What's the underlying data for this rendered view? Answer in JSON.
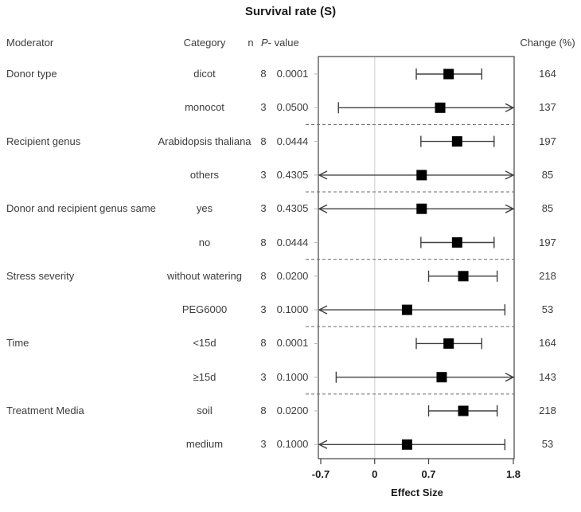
{
  "title": "Survival rate (S)",
  "header": {
    "moderator": "Moderator",
    "category": "Category",
    "n": "n",
    "p_italic": "P",
    "p_rest": "- value",
    "change": "Change (%)"
  },
  "chart_data": {
    "type": "forest",
    "title": "Survival rate (S)",
    "xlabel": "Effect Size",
    "xticks": [
      -0.7,
      0,
      0.7,
      1.8
    ],
    "xtick_labels": [
      "-0.7",
      "0",
      "0.7",
      "1.8"
    ],
    "xlim": [
      -0.73,
      1.81
    ],
    "zero_line": 0,
    "legend": "none",
    "colors": {
      "marker": "#000000",
      "bar": "#404040",
      "box": "#444444",
      "zero_line": "#dcdcdc",
      "separator": "#6e6e6e",
      "row_tick": "#b4b4b4",
      "text": "#3c3c3c"
    },
    "groups": [
      {
        "moderator": "Donor type",
        "rows": [
          {
            "category": "dicot",
            "n": 8,
            "p": "0.0001",
            "est": 0.96,
            "lo": 0.54,
            "hi": 1.39,
            "lo_arrow": false,
            "hi_arrow": false,
            "change": 164
          },
          {
            "category": "monocot",
            "n": 3,
            "p": "0.0500",
            "est": 0.85,
            "lo": -0.47,
            "hi": 1.81,
            "lo_arrow": false,
            "hi_arrow": true,
            "change": 137
          }
        ]
      },
      {
        "moderator": "Recipient genus",
        "rows": [
          {
            "category": "Arabidopsis thaliana",
            "n": 8,
            "p": "0.0444",
            "est": 1.07,
            "lo": 0.6,
            "hi": 1.55,
            "lo_arrow": false,
            "hi_arrow": false,
            "change": 197
          },
          {
            "category": "others",
            "n": 3,
            "p": "0.4305",
            "est": 0.61,
            "lo": -0.73,
            "hi": 1.81,
            "lo_arrow": true,
            "hi_arrow": true,
            "change": 85
          }
        ]
      },
      {
        "moderator": "Donor and recipient genus same",
        "rows": [
          {
            "category": "yes",
            "n": 3,
            "p": "0.4305",
            "est": 0.61,
            "lo": -0.73,
            "hi": 1.81,
            "lo_arrow": true,
            "hi_arrow": true,
            "change": 85
          },
          {
            "category": "no",
            "n": 8,
            "p": "0.0444",
            "est": 1.07,
            "lo": 0.6,
            "hi": 1.55,
            "lo_arrow": false,
            "hi_arrow": false,
            "change": 197
          }
        ]
      },
      {
        "moderator": "Stress severity",
        "rows": [
          {
            "category": "without watering",
            "n": 8,
            "p": "0.0200",
            "est": 1.15,
            "lo": 0.7,
            "hi": 1.59,
            "lo_arrow": false,
            "hi_arrow": false,
            "change": 218
          },
          {
            "category": "PEG6000",
            "n": 3,
            "p": "0.1000",
            "est": 0.42,
            "lo": -0.73,
            "hi": 1.69,
            "lo_arrow": true,
            "hi_arrow": false,
            "change": 53
          }
        ]
      },
      {
        "moderator": "Time",
        "rows": [
          {
            "category": "<15d",
            "n": 8,
            "p": "0.0001",
            "est": 0.96,
            "lo": 0.54,
            "hi": 1.39,
            "lo_arrow": false,
            "hi_arrow": false,
            "change": 164
          },
          {
            "category": "≥15d",
            "n": 3,
            "p": "0.1000",
            "est": 0.87,
            "lo": -0.5,
            "hi": 1.81,
            "lo_arrow": false,
            "hi_arrow": true,
            "change": 143
          }
        ]
      },
      {
        "moderator": "Treatment Media",
        "rows": [
          {
            "category": "soil",
            "n": 8,
            "p": "0.0200",
            "est": 1.15,
            "lo": 0.7,
            "hi": 1.59,
            "lo_arrow": false,
            "hi_arrow": false,
            "change": 218
          },
          {
            "category": "medium",
            "n": 3,
            "p": "0.1000",
            "est": 0.42,
            "lo": -0.73,
            "hi": 1.69,
            "lo_arrow": true,
            "hi_arrow": false,
            "change": 53
          }
        ]
      }
    ]
  }
}
